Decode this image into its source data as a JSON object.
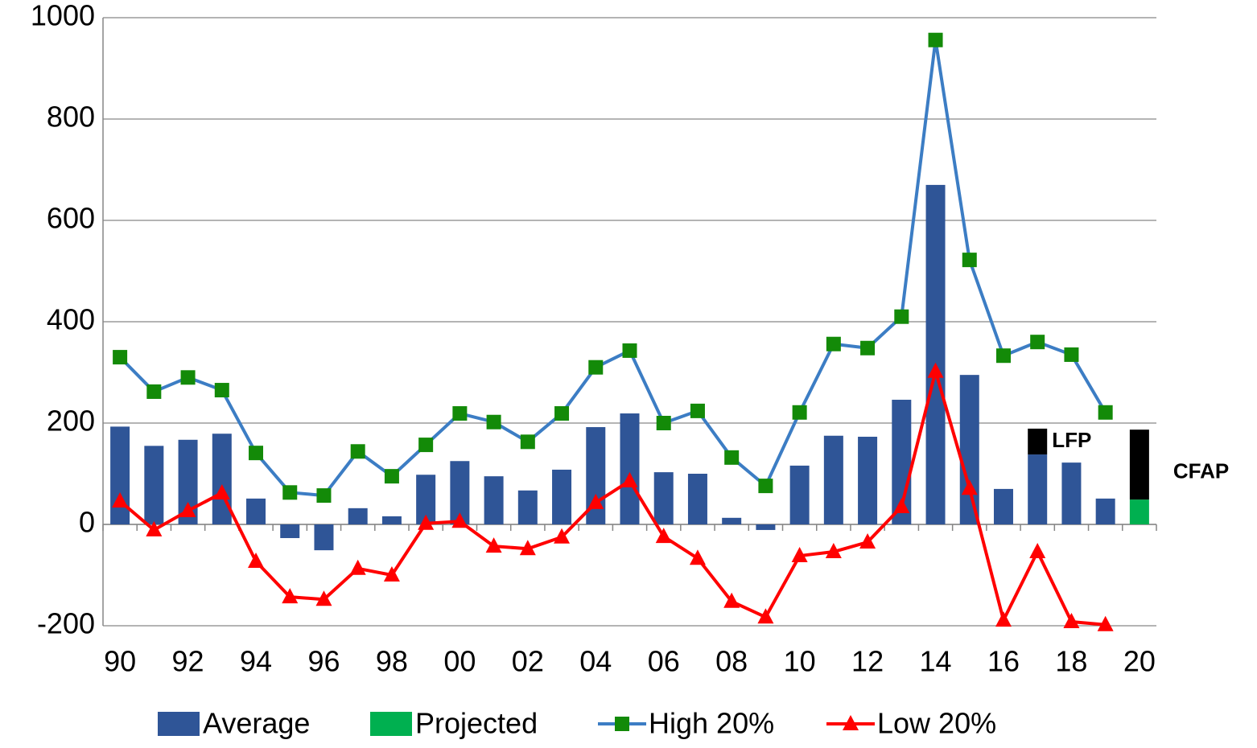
{
  "chart_data": {
    "type": "combo",
    "categories": [
      "90",
      null,
      "92",
      null,
      "94",
      null,
      "96",
      null,
      "98",
      null,
      "00",
      null,
      "02",
      null,
      "04",
      null,
      "06",
      null,
      "08",
      null,
      "10",
      null,
      "12",
      null,
      "14",
      null,
      "16",
      null,
      "18",
      null,
      "20"
    ],
    "ylim": [
      -200,
      1000
    ],
    "yticks": [
      -200,
      0,
      200,
      400,
      600,
      800,
      1000
    ],
    "grid": true,
    "series": [
      {
        "name": "Average",
        "type": "bar",
        "color": "#2f5597",
        "values": [
          193,
          155,
          167,
          179,
          51,
          -27,
          -51,
          32,
          16,
          98,
          125,
          95,
          67,
          108,
          192,
          219,
          103,
          100,
          13,
          -11,
          116,
          175,
          173,
          246,
          670,
          295,
          70,
          138,
          122,
          51,
          null
        ]
      },
      {
        "name": "Projected",
        "type": "bar",
        "color": "#00b050",
        "values": [
          null,
          null,
          null,
          null,
          null,
          null,
          null,
          null,
          null,
          null,
          null,
          null,
          null,
          null,
          null,
          null,
          null,
          null,
          null,
          null,
          null,
          null,
          null,
          null,
          null,
          null,
          null,
          null,
          null,
          null,
          49
        ]
      },
      {
        "name": "High 20%",
        "type": "line",
        "color": "#3c7dc4",
        "marker": "square",
        "marker_color": "#138a08",
        "values": [
          330,
          262,
          290,
          265,
          141,
          63,
          57,
          144,
          95,
          157,
          219,
          202,
          163,
          219,
          310,
          343,
          200,
          224,
          132,
          76,
          221,
          356,
          348,
          410,
          956,
          522,
          333,
          360,
          335,
          221,
          null
        ]
      },
      {
        "name": "Low 20%",
        "type": "line",
        "color": "#ff0000",
        "marker": "triangle",
        "marker_color": "#ff0000",
        "values": [
          46,
          -11,
          27,
          62,
          -73,
          -143,
          -148,
          -87,
          -100,
          2,
          6,
          -43,
          -48,
          -25,
          43,
          86,
          -24,
          -67,
          -152,
          -183,
          -62,
          -54,
          -35,
          35,
          302,
          71,
          -189,
          -54,
          -192,
          -198,
          null
        ]
      }
    ],
    "annotations": [
      {
        "text": "LFP",
        "category_index": 27,
        "range": [
          138,
          189
        ],
        "color": "#000000"
      },
      {
        "text": "CFAP",
        "category_index": 30,
        "range": [
          49,
          187
        ],
        "color": "#000000"
      }
    ]
  }
}
